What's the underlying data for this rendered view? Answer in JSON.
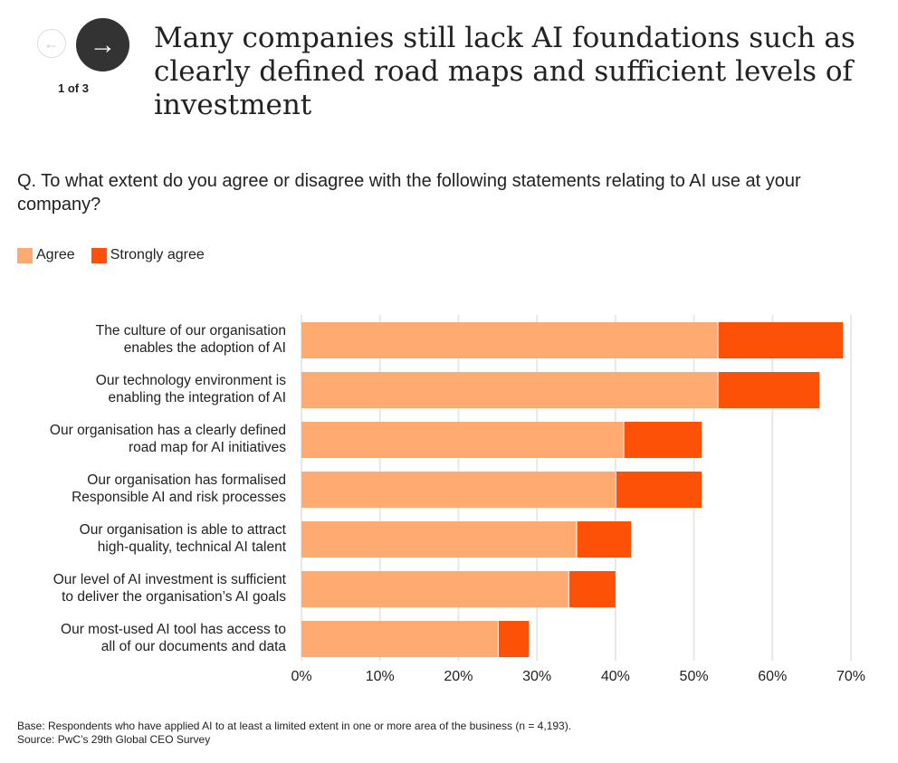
{
  "nav": {
    "page_label": "1 of 3",
    "prev_icon": "arrow-left-icon",
    "next_icon": "arrow-right-icon"
  },
  "colors": {
    "agree": "#FFAA70",
    "strongly_agree": "#FD5108",
    "grid": "#e8e8e8"
  },
  "chart_data": {
    "type": "bar",
    "orientation": "horizontal",
    "stacked": true,
    "title": "Many companies still lack AI foundations such as clearly defined road maps and sufficient levels of investment",
    "subtitle": "Q. To what extent do you agree or disagree with the following statements relating to AI use at your company?",
    "categories": [
      [
        "The culture of our organisation",
        "enables the adoption of AI"
      ],
      [
        "Our technology environment is",
        "enabling the integration of AI"
      ],
      [
        "Our organisation has a clearly defined",
        "road map for AI initiatives"
      ],
      [
        "Our organisation has formalised",
        "Responsible AI and risk processes"
      ],
      [
        "Our organisation is able to attract",
        "high-quality, technical AI talent"
      ],
      [
        "Our level of AI investment is sufficient",
        "to deliver the organisation’s AI goals"
      ],
      [
        "Our most-used AI tool has access to",
        "all of our documents and data"
      ]
    ],
    "series": [
      {
        "name": "Agree",
        "values": [
          53,
          53,
          41,
          40,
          35,
          34,
          25
        ]
      },
      {
        "name": "Strongly agree",
        "values": [
          16,
          13,
          10,
          11,
          7,
          6,
          4
        ]
      }
    ],
    "xlim": [
      0,
      70
    ],
    "xticks": [
      "0%",
      "10%",
      "20%",
      "30%",
      "40%",
      "50%",
      "60%",
      "70%"
    ],
    "grid": true,
    "legend": "top-left",
    "footnotes": [
      "Base: Respondents who have applied AI to at least a limited extent in one or more area of the business (n = 4,193).",
      "Source: PwC’s 29th Global CEO Survey"
    ]
  }
}
